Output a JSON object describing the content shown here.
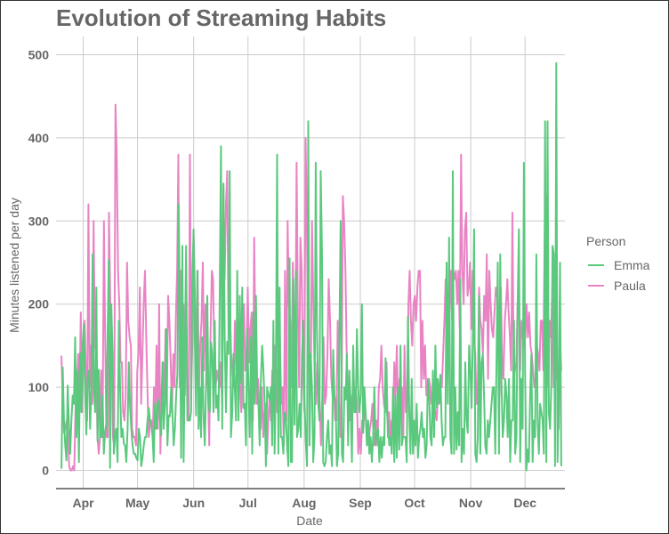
{
  "chart_data": {
    "type": "line",
    "title": "Evolution of Streaming Habits",
    "xlabel": "Date",
    "ylabel": "Minutes listened per day",
    "x_range": [
      "2020-03-17",
      "2020-12-23"
    ],
    "x_ticks": [
      {
        "label": "Apr",
        "date": "2020-04-01"
      },
      {
        "label": "May",
        "date": "2020-05-01"
      },
      {
        "label": "Jun",
        "date": "2020-06-01"
      },
      {
        "label": "Jul",
        "date": "2020-07-01"
      },
      {
        "label": "Aug",
        "date": "2020-08-01"
      },
      {
        "label": "Sep",
        "date": "2020-09-01"
      },
      {
        "label": "Oct",
        "date": "2020-10-01"
      },
      {
        "label": "Nov",
        "date": "2020-11-01"
      },
      {
        "label": "Dec",
        "date": "2020-12-01"
      }
    ],
    "ylim": [
      -22,
      522
    ],
    "y_ticks": [
      0,
      100,
      200,
      300,
      400,
      500
    ],
    "grid": true,
    "legend": {
      "title": "Person",
      "position": "right"
    },
    "series": [
      {
        "name": "Emma",
        "color": "#5AC97D",
        "start_date": "2020-03-20",
        "values": [
          2,
          124,
          60,
          30,
          12,
          102,
          55,
          20,
          61,
          90,
          80,
          160,
          40,
          121,
          10,
          141,
          70,
          150,
          176,
          92,
          43,
          112,
          120,
          50,
          100,
          260,
          102,
          70,
          220,
          35,
          121,
          40,
          40,
          90,
          20,
          46,
          56,
          160,
          253,
          3,
          200,
          142,
          20,
          42,
          50,
          10,
          180,
          100,
          40,
          50,
          32,
          30,
          10,
          50,
          130,
          76,
          50,
          30,
          20,
          20,
          15,
          12,
          50,
          40,
          5,
          15,
          30,
          40,
          40,
          60,
          75,
          60,
          55,
          42,
          10,
          80,
          50,
          80,
          85,
          60,
          42,
          130,
          50,
          78,
          170,
          30,
          66,
          65,
          100,
          70,
          30,
          50,
          90,
          116,
          320,
          195,
          15,
          270,
          10,
          140,
          270,
          65,
          60,
          60,
          70,
          230,
          290,
          160,
          66,
          240,
          50,
          100,
          40,
          160,
          65,
          30,
          100,
          210,
          80,
          70,
          154,
          140,
          70,
          180,
          75,
          90,
          60,
          210,
          390,
          50,
          345,
          160,
          70,
          155,
          140,
          360,
          40,
          70,
          140,
          100,
          60,
          240,
          60,
          210,
          105,
          220,
          75,
          80,
          30,
          170,
          100,
          40,
          160,
          20,
          190,
          80,
          210,
          100,
          80,
          30,
          112,
          150,
          120,
          80,
          5,
          100,
          90,
          85,
          100,
          30,
          180,
          20,
          110,
          380,
          20,
          220,
          40,
          40,
          20,
          70,
          65,
          30,
          5,
          255,
          10,
          10,
          230,
          55,
          240,
          40,
          50,
          80,
          40,
          140,
          180,
          85,
          35,
          5,
          420,
          30,
          140,
          100,
          10,
          40,
          370,
          170,
          80,
          60,
          360,
          265,
          10,
          5,
          10,
          40,
          60,
          20,
          30,
          5,
          145,
          90,
          80,
          5,
          20,
          160,
          300,
          20,
          10,
          100,
          85,
          140,
          30,
          120,
          75,
          10,
          150,
          70,
          70,
          170,
          100,
          70,
          90,
          200,
          45,
          100,
          70,
          30,
          60,
          20,
          40,
          10,
          40,
          100,
          30,
          45,
          50,
          10,
          40,
          15,
          40,
          30,
          135,
          75,
          50,
          30,
          40,
          20,
          100,
          10,
          90,
          15,
          100,
          25,
          150,
          30,
          40,
          40,
          40,
          10,
          185,
          70,
          20,
          110,
          20,
          60,
          30,
          80,
          15,
          40,
          50,
          70,
          40,
          50,
          15,
          30,
          110,
          90,
          40,
          30,
          120,
          40,
          150,
          75,
          110,
          80,
          115,
          60,
          30,
          40,
          40,
          250,
          80,
          280,
          40,
          20,
          360,
          20,
          100,
          25,
          70,
          30,
          230,
          10,
          50,
          20,
          130,
          60,
          45,
          150,
          120,
          75,
          160,
          290,
          20,
          10,
          40,
          210,
          20,
          130,
          140,
          90,
          30,
          20,
          60,
          40,
          60,
          80,
          100,
          100,
          20,
          130,
          250,
          20,
          260,
          105,
          40,
          60,
          110,
          90,
          40,
          110,
          10,
          60,
          60,
          180,
          20,
          40,
          200,
          290,
          10,
          110,
          50,
          370,
          110,
          0,
          25,
          10,
          90,
          140,
          10,
          60,
          40,
          260,
          60,
          20,
          80,
          70,
          60,
          20,
          420,
          10,
          420,
          70,
          50,
          100,
          270,
          260,
          5,
          490,
          10,
          90,
          250,
          5
        ]
      },
      {
        "name": "Paula",
        "color": "#E884C4",
        "start_date": "2020-03-20",
        "values": [
          138,
          80,
          45,
          50,
          60,
          40,
          5,
          0,
          0,
          5,
          0,
          80,
          100,
          140,
          80,
          190,
          70,
          130,
          180,
          120,
          60,
          320,
          100,
          150,
          80,
          300,
          150,
          140,
          40,
          20,
          40,
          120,
          40,
          300,
          160,
          40,
          40,
          310,
          200,
          160,
          40,
          30,
          440,
          380,
          240,
          200,
          130,
          130,
          70,
          60,
          90,
          250,
          180,
          160,
          150,
          50,
          40,
          40,
          30,
          120,
          140,
          220,
          80,
          140,
          200,
          240,
          160,
          90,
          40,
          60,
          60,
          40,
          100,
          60,
          150,
          50,
          200,
          20,
          100,
          130,
          90,
          170,
          80,
          210,
          180,
          130,
          70,
          140,
          100,
          180,
          240,
          380,
          100,
          240,
          170,
          200,
          90,
          220,
          60,
          60,
          380,
          100,
          160,
          280,
          200,
          120,
          240,
          90,
          150,
          180,
          250,
          120,
          200,
          120,
          100,
          30,
          160,
          240,
          230,
          130,
          100,
          120,
          110,
          100,
          130,
          80,
          340,
          230,
          320,
          360,
          160,
          200,
          140,
          120,
          100,
          180,
          120,
          170,
          160,
          100,
          70,
          140,
          200,
          120,
          140,
          220,
          130,
          170,
          190,
          60,
          280,
          150,
          80,
          110,
          80,
          50,
          100,
          40,
          70,
          80,
          20,
          60,
          90,
          60,
          120,
          80,
          150,
          120,
          70,
          200,
          160,
          80,
          100,
          30,
          240,
          60,
          300,
          200,
          180,
          100,
          250,
          180,
          140,
          370,
          180,
          100,
          280,
          240,
          120,
          70,
          400,
          290,
          120,
          120,
          100,
          300,
          200,
          120,
          80,
          130,
          100,
          80,
          30,
          90,
          160,
          80,
          90,
          140,
          230,
          180,
          110,
          90,
          100,
          60,
          60,
          180,
          110,
          40,
          80,
          330,
          300,
          240,
          140,
          80,
          60,
          90,
          40,
          130,
          80,
          100,
          80,
          20,
          50,
          20,
          60,
          50,
          80,
          60,
          40,
          30,
          50,
          60,
          80,
          30,
          40,
          60,
          30,
          100,
          110,
          150,
          100,
          80,
          70,
          130,
          40,
          70,
          40,
          60,
          50,
          130,
          90,
          150,
          60,
          110,
          80,
          100,
          40,
          150,
          70,
          90,
          200,
          240,
          180,
          150,
          200,
          210,
          180,
          220,
          240,
          240,
          100,
          180,
          110,
          150,
          90,
          100,
          110,
          100,
          80,
          80,
          80,
          70,
          60,
          90,
          90,
          100,
          100,
          140,
          180,
          230,
          140,
          200,
          190,
          240,
          180,
          240,
          230,
          240,
          200,
          240,
          170,
          380,
          240,
          200,
          290,
          310,
          210,
          220,
          250,
          170,
          240,
          160,
          140,
          80,
          100,
          220,
          180,
          170,
          140,
          210,
          180,
          260,
          110,
          240,
          200,
          170,
          160,
          190,
          220,
          210,
          200,
          90,
          220,
          130,
          110,
          180,
          200,
          230,
          190,
          160,
          120,
          310,
          110,
          120,
          130,
          200,
          230,
          120,
          180,
          160,
          150,
          160,
          200,
          160,
          190,
          150,
          140,
          120,
          100,
          110,
          150,
          140,
          120,
          180,
          180,
          120,
          280,
          330,
          120,
          100,
          180,
          160,
          220,
          100,
          200,
          110,
          120,
          50,
          160,
          120
        ]
      }
    ]
  }
}
